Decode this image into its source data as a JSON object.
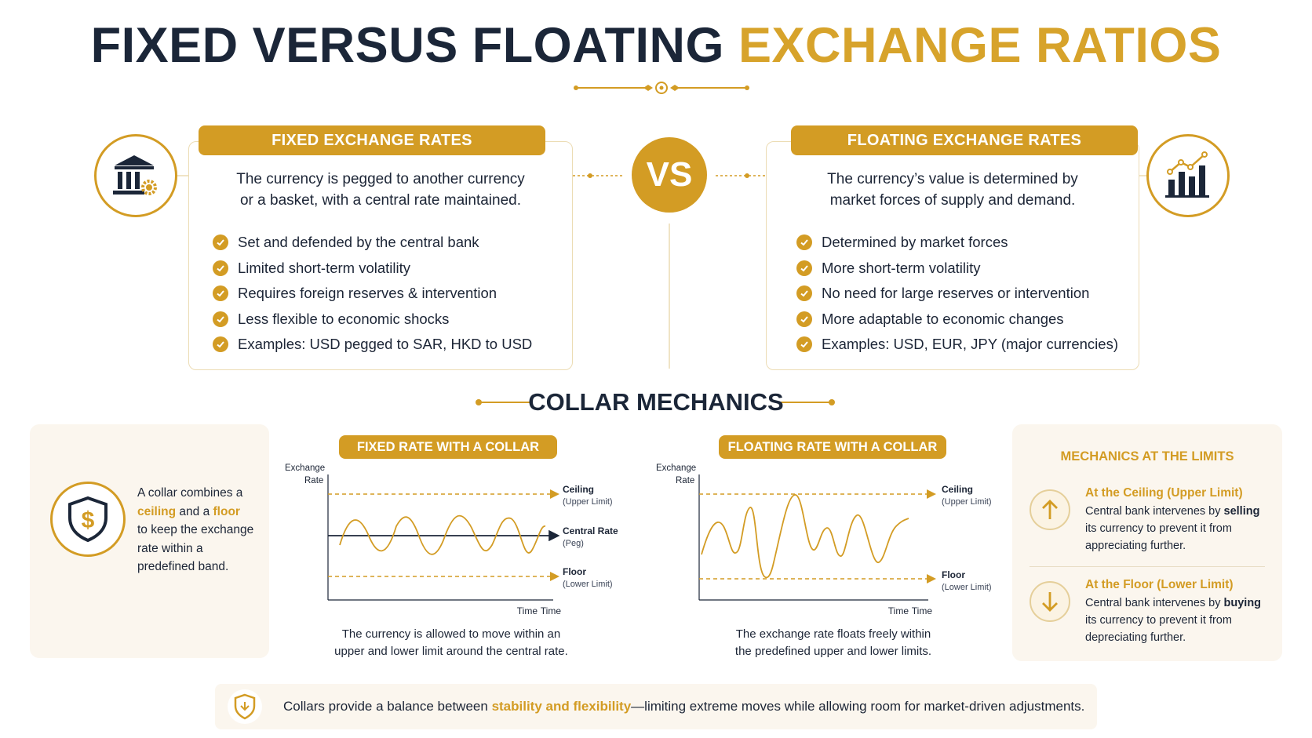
{
  "title": {
    "part1": "FIXED VERSUS FLOATING ",
    "part2": "EXCHANGE RATIOS"
  },
  "vs_label": "VS",
  "fixed": {
    "heading": "FIXED EXCHANGE RATES",
    "description_line1": "The currency is pegged to another currency",
    "description_line2": "or a basket, with a central rate maintained.",
    "points": [
      "Set and defended by the central bank",
      "Limited short-term volatility",
      "Requires foreign reserves & intervention",
      "Less flexible to economic shocks",
      "Examples: USD pegged to SAR, HKD to USD"
    ],
    "icon": "bank-gear-icon"
  },
  "floating": {
    "heading": "FLOATING EXCHANGE RATES",
    "description_line1": "The currency’s value is determined by",
    "description_line2": "market forces of supply and demand.",
    "points": [
      "Determined by market forces",
      "More short-term volatility",
      "No need for large reserves or intervention",
      "More adaptable to economic changes",
      "Examples: USD, EUR, JPY (major currencies)"
    ],
    "icon": "bar-chart-trend-icon"
  },
  "collar": {
    "heading": "COLLAR MECHANICS",
    "intro": {
      "t1": "A collar combines a",
      "ceiling": "ceiling",
      "and": " and a ",
      "floor": "floor",
      "t2": "to keep the exchange",
      "t3": "rate within a",
      "t4": "predefined band."
    },
    "intro_icon": "shield-dollar-icon"
  },
  "fixed_chart": {
    "banner": "FIXED RATE WITH A COLLAR",
    "y_label_line1": "Exchange",
    "y_label_line2": "Rate",
    "x_label": "Time",
    "ceiling_label": "Ceiling",
    "ceiling_sub": "(Upper Limit)",
    "central_label": "Central Rate",
    "central_sub": "(Peg)",
    "floor_label": "Floor",
    "floor_sub": "(Lower Limit)",
    "caption_line1": "The currency is allowed to move within an",
    "caption_line2": "upper and lower limit around the central rate."
  },
  "floating_chart": {
    "banner": "FLOATING RATE WITH A COLLAR",
    "y_label_line1": "Exchange",
    "y_label_line2": "Rate",
    "x_label": "Time",
    "ceiling_label": "Ceiling",
    "ceiling_sub": "(Upper Limit)",
    "floor_label": "Floor",
    "floor_sub": "(Lower Limit)",
    "caption_line1": "The exchange rate floats freely within",
    "caption_line2": "the predefined upper and lower limits."
  },
  "mechanics": {
    "title": "MECHANICS AT THE LIMITS",
    "ceiling": {
      "heading": "At the Ceiling (Upper Limit)",
      "l1a": "Central bank intervenes by ",
      "l1b": "selling",
      "l2": "its currency to prevent it from",
      "l3": "appreciating further.",
      "icon": "arrow-up-icon"
    },
    "floor": {
      "heading": "At the Floor (Lower Limit)",
      "l1a": "Central bank intervenes by ",
      "l1b": "buying",
      "l2": "its currency to prevent it from",
      "l3": "depreciating further.",
      "icon": "arrow-down-icon"
    }
  },
  "footer": {
    "t1": "Collars provide a balance between ",
    "highlight": "stability and flexibility",
    "t2": "—limiting extreme moves while allowing room for market-driven adjustments.",
    "icon": "shield-check-icon"
  },
  "colors": {
    "gold": "#d39c24",
    "navy": "#1b2638",
    "cream": "#fbf6ee"
  }
}
